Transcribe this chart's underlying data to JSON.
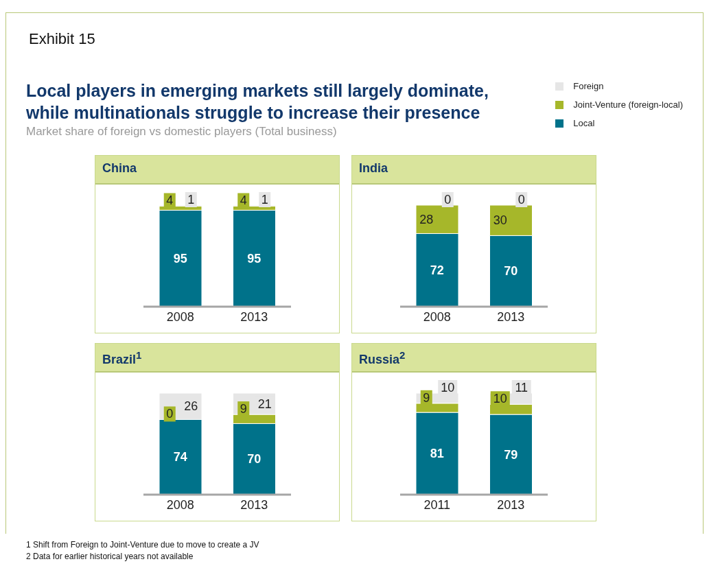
{
  "chart_data": [
    {
      "type": "other",
      "title": "Local players in emerging markets still largely dominate, while multinationals struggle to increase their presence",
      "subtitle": "Market share of foreign vs domestic players (Total business)",
      "annotations": [
        "Exhibit 15",
        "1 Shift from Foreign to Joint-Venture due to move to create a JV",
        "2 Data for earlier historical years not available"
      ]
    },
    {
      "type": "bar",
      "title": "China",
      "categories": [
        "2008",
        "2013"
      ],
      "stacked": true,
      "data_labels": true,
      "legend": "top right",
      "series": [
        {
          "name": "Local",
          "color": "#00728a",
          "values": [
            95,
            95
          ]
        },
        {
          "name": "Joint-Venture (foreign-local)",
          "color": "#a6b72a",
          "values": [
            4,
            4
          ]
        },
        {
          "name": "Foreign",
          "color": "#e6e6e6",
          "values": [
            1,
            1
          ]
        }
      ]
    },
    {
      "type": "bar",
      "title": "India",
      "categories": [
        "2008",
        "2013"
      ],
      "stacked": true,
      "data_labels": true,
      "series": [
        {
          "color": "#00728a",
          "values": [
            72,
            70
          ]
        },
        {
          "color": "#a6b72a",
          "values": [
            28,
            30
          ]
        },
        {
          "color": "#e6e6e6",
          "values": [
            0,
            0
          ]
        }
      ]
    },
    {
      "type": "bar",
      "title": "Brazil$^{1}$",
      "categories": [
        "2008",
        "2013"
      ],
      "stacked": true,
      "data_labels": true,
      "series": [
        {
          "color": "#00728a",
          "values": [
            74,
            70
          ]
        },
        {
          "color": "#a6b72a",
          "values": [
            0,
            9
          ]
        },
        {
          "color": "#e6e6e6",
          "values": [
            26,
            21
          ]
        }
      ]
    },
    {
      "type": "bar",
      "title": "Russia$^{2}$",
      "categories": [
        "2011",
        "2013"
      ],
      "stacked": true,
      "data_labels": true,
      "series": [
        {
          "color": "#00728a",
          "values": [
            81,
            79
          ]
        },
        {
          "color": "#a6b72a",
          "values": [
            9,
            10
          ]
        },
        {
          "color": "#e6e6e6",
          "values": [
            10,
            11
          ]
        }
      ]
    }
  ]
}
